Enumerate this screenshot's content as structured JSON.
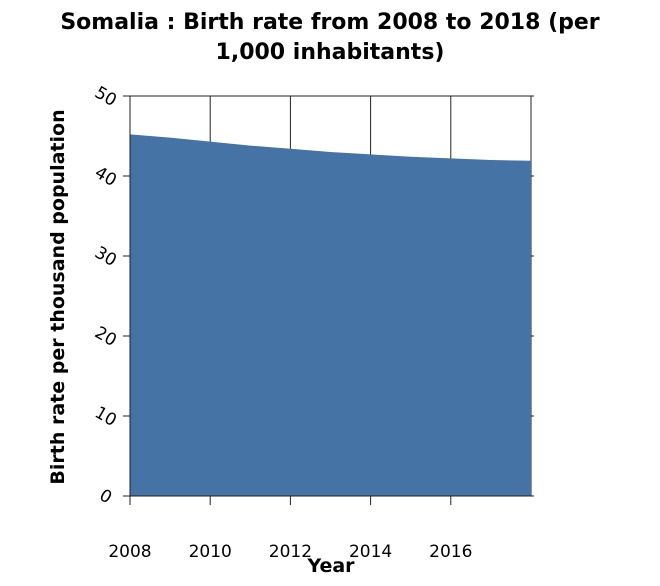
{
  "chart_data": {
    "type": "area",
    "title": "Somalia : Birth rate from 2008 to 2018 (per\n1,000 inhabitants)",
    "xlabel": "Year",
    "ylabel": "Birth rate per thousand population",
    "x": [
      2008,
      2009,
      2010,
      2011,
      2012,
      2013,
      2014,
      2015,
      2016,
      2017,
      2018
    ],
    "values": [
      45.2,
      44.8,
      44.3,
      43.8,
      43.4,
      43.0,
      42.7,
      42.4,
      42.2,
      42.0,
      41.9
    ],
    "x_ticks": [
      "2008",
      "2010",
      "2012",
      "2014",
      "2016"
    ],
    "y_ticks": [
      "0",
      "10",
      "20",
      "30",
      "40",
      "50"
    ],
    "xlim": [
      2008,
      2018
    ],
    "ylim": [
      0,
      50
    ],
    "grid": "vertical",
    "fill_color": "#4673a6"
  }
}
